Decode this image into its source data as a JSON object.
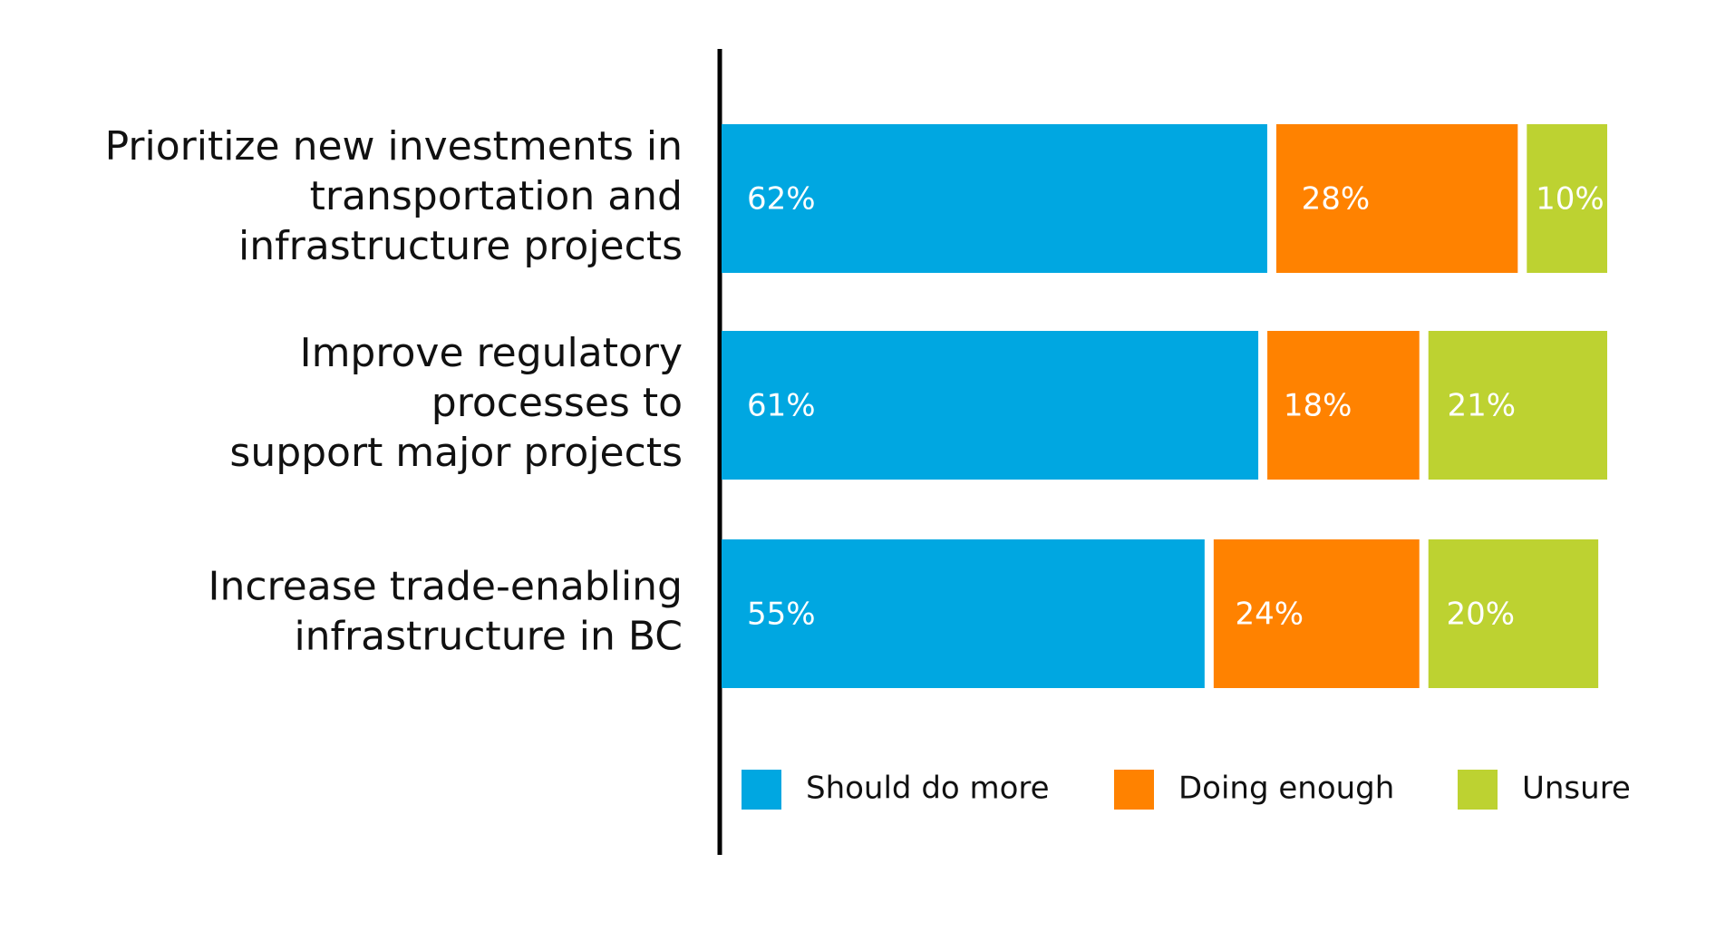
{
  "chart_data": {
    "type": "stacked-bar-horizontal",
    "categories": [
      "Prioritize new investments in\ntransportation and\ninfrastructure projects",
      "Improve regulatory\nprocesses to\nsupport major projects",
      "Increase trade-enabling\ninfrastructure in BC"
    ],
    "series": [
      {
        "name": "Should do more",
        "color": "#00a7e1",
        "values": [
          62,
          61,
          55
        ],
        "value_labels": [
          "62%",
          "61%",
          "55%"
        ]
      },
      {
        "name": "Doing enough",
        "color": "#ff8200",
        "values": [
          28,
          18,
          24
        ],
        "value_labels": [
          "28%",
          "18%",
          "24%"
        ]
      },
      {
        "name": "Unsure",
        "color": "#bdd231",
        "values": [
          10,
          21,
          20
        ],
        "value_labels": [
          "10%",
          "21%",
          "20%"
        ]
      }
    ]
  }
}
